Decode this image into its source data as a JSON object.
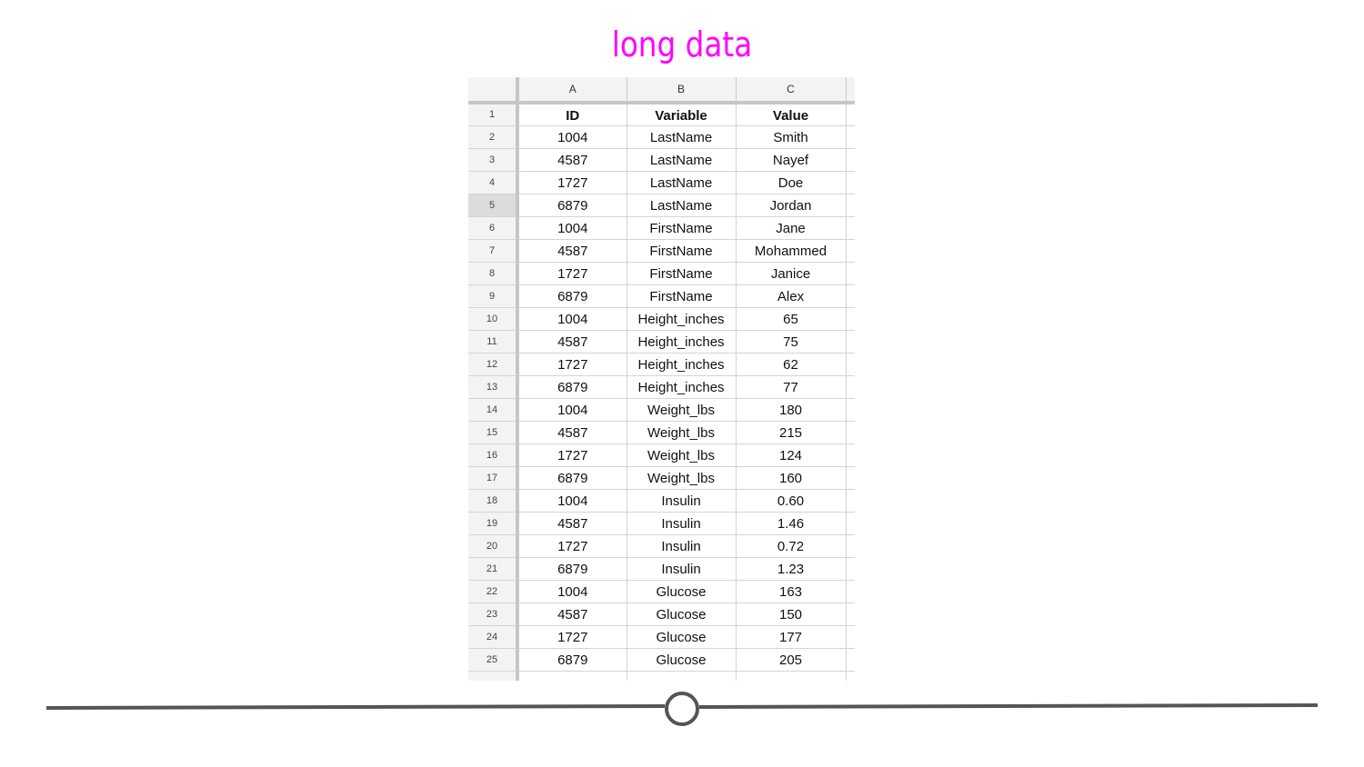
{
  "title": "long data",
  "sheet": {
    "column_letters": [
      "A",
      "B",
      "C"
    ],
    "selected_row": "5",
    "rows": [
      {
        "num": "1",
        "cells": [
          "ID",
          "Variable",
          "Value"
        ]
      },
      {
        "num": "2",
        "cells": [
          "1004",
          "LastName",
          "Smith"
        ]
      },
      {
        "num": "3",
        "cells": [
          "4587",
          "LastName",
          "Nayef"
        ]
      },
      {
        "num": "4",
        "cells": [
          "1727",
          "LastName",
          "Doe"
        ]
      },
      {
        "num": "5",
        "cells": [
          "6879",
          "LastName",
          "Jordan"
        ]
      },
      {
        "num": "6",
        "cells": [
          "1004",
          "FirstName",
          "Jane"
        ]
      },
      {
        "num": "7",
        "cells": [
          "4587",
          "FirstName",
          "Mohammed"
        ]
      },
      {
        "num": "8",
        "cells": [
          "1727",
          "FirstName",
          "Janice"
        ]
      },
      {
        "num": "9",
        "cells": [
          "6879",
          "FirstName",
          "Alex"
        ]
      },
      {
        "num": "10",
        "cells": [
          "1004",
          "Height_inches",
          "65"
        ]
      },
      {
        "num": "11",
        "cells": [
          "4587",
          "Height_inches",
          "75"
        ]
      },
      {
        "num": "12",
        "cells": [
          "1727",
          "Height_inches",
          "62"
        ]
      },
      {
        "num": "13",
        "cells": [
          "6879",
          "Height_inches",
          "77"
        ]
      },
      {
        "num": "14",
        "cells": [
          "1004",
          "Weight_lbs",
          "180"
        ]
      },
      {
        "num": "15",
        "cells": [
          "4587",
          "Weight_lbs",
          "215"
        ]
      },
      {
        "num": "16",
        "cells": [
          "1727",
          "Weight_lbs",
          "124"
        ]
      },
      {
        "num": "17",
        "cells": [
          "6879",
          "Weight_lbs",
          "160"
        ]
      },
      {
        "num": "18",
        "cells": [
          "1004",
          "Insulin",
          "0.60"
        ]
      },
      {
        "num": "19",
        "cells": [
          "4587",
          "Insulin",
          "1.46"
        ]
      },
      {
        "num": "20",
        "cells": [
          "1727",
          "Insulin",
          "0.72"
        ]
      },
      {
        "num": "21",
        "cells": [
          "6879",
          "Insulin",
          "1.23"
        ]
      },
      {
        "num": "22",
        "cells": [
          "1004",
          "Glucose",
          "163"
        ]
      },
      {
        "num": "23",
        "cells": [
          "4587",
          "Glucose",
          "150"
        ]
      },
      {
        "num": "24",
        "cells": [
          "1727",
          "Glucose",
          "177"
        ]
      },
      {
        "num": "25",
        "cells": [
          "6879",
          "Glucose",
          "205"
        ]
      },
      {
        "num": "",
        "cells": [
          "",
          "",
          ""
        ]
      }
    ]
  },
  "timeline": {
    "progress": 0.5,
    "line_color": "#555555"
  },
  "colors": {
    "title": "#ff00ff"
  }
}
